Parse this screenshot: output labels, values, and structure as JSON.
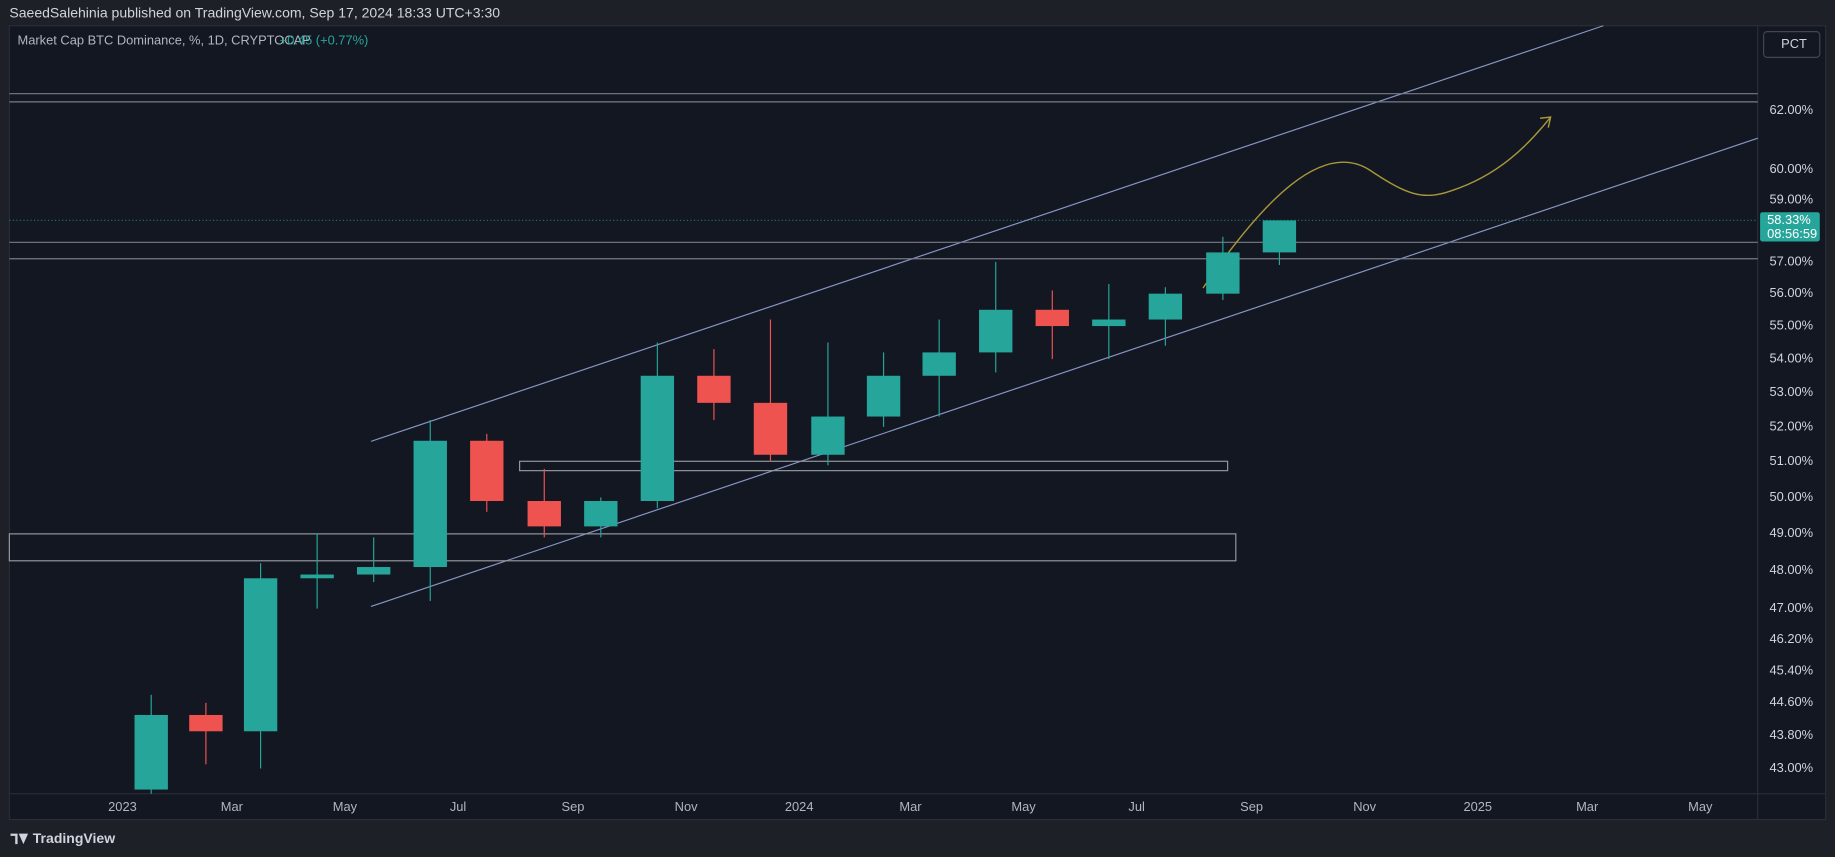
{
  "header": {
    "publisher_line": "SaeedSalehinia published on TradingView.com, Sep 17, 2024 18:33 UTC+3:30"
  },
  "chart_data": {
    "type": "candlestick",
    "title": "Market Cap BTC Dominance, %, 1D, CRYPTOCAP",
    "change_label": "+0.45 (+0.77%)",
    "scale_mode": "PCT",
    "log_scale": true,
    "grid": false,
    "up_color": "#26a69a",
    "down_color": "#ef5350",
    "x": [
      "2023-01",
      "2023-02",
      "2023-03",
      "2023-04",
      "2023-05",
      "2023-06",
      "2023-07",
      "2023-08",
      "2023-09",
      "2023-10",
      "2023-11",
      "2023-12",
      "2024-01",
      "2024-02",
      "2024-03",
      "2024-04",
      "2024-05",
      "2024-06",
      "2024-07",
      "2024-08",
      "2024-09"
    ],
    "open": [
      42.5,
      44.3,
      43.9,
      47.8,
      47.9,
      48.1,
      51.6,
      49.9,
      49.2,
      49.9,
      53.5,
      52.7,
      51.2,
      52.3,
      53.5,
      54.2,
      55.5,
      55.0,
      55.2,
      56.0,
      57.3
    ],
    "high": [
      44.8,
      44.6,
      48.2,
      49.0,
      48.9,
      52.2,
      51.8,
      50.8,
      50.0,
      54.5,
      54.3,
      55.2,
      54.5,
      54.2,
      55.2,
      57.0,
      56.1,
      56.3,
      56.2,
      57.8,
      58.33
    ],
    "low": [
      42.4,
      43.1,
      43.0,
      47.0,
      47.7,
      47.2,
      49.6,
      48.9,
      48.9,
      49.7,
      52.2,
      51.0,
      50.9,
      52.0,
      52.3,
      53.6,
      54.0,
      54.0,
      54.4,
      55.8,
      56.9
    ],
    "close": [
      44.3,
      43.9,
      47.8,
      47.9,
      48.1,
      51.6,
      49.9,
      49.2,
      49.9,
      53.5,
      52.7,
      51.2,
      52.3,
      53.5,
      54.2,
      55.5,
      55.0,
      55.2,
      56.0,
      57.3,
      58.33
    ],
    "xlim": [
      "2022-11",
      "2025-06"
    ],
    "xticks": [
      {
        "value": "2023-01",
        "label": "2023"
      },
      {
        "value": "2023-03",
        "label": "Mar"
      },
      {
        "value": "2023-05",
        "label": "May"
      },
      {
        "value": "2023-07",
        "label": "Jul"
      },
      {
        "value": "2023-09",
        "label": "Sep"
      },
      {
        "value": "2023-11",
        "label": "Nov"
      },
      {
        "value": "2024-01",
        "label": "2024"
      },
      {
        "value": "2024-03",
        "label": "Mar"
      },
      {
        "value": "2024-05",
        "label": "May"
      },
      {
        "value": "2024-07",
        "label": "Jul"
      },
      {
        "value": "2024-09",
        "label": "Sep"
      },
      {
        "value": "2024-11",
        "label": "Nov"
      },
      {
        "value": "2025-01",
        "label": "2025"
      },
      {
        "value": "2025-03",
        "label": "Mar"
      },
      {
        "value": "2025-05",
        "label": "May"
      }
    ],
    "ylim": [
      42.4,
      65
    ],
    "yticks": [
      {
        "value": 62,
        "label": "62.00%"
      },
      {
        "value": 60,
        "label": "60.00%"
      },
      {
        "value": 59,
        "label": "59.00%"
      },
      {
        "value": 57,
        "label": "57.00%"
      },
      {
        "value": 56,
        "label": "56.00%"
      },
      {
        "value": 55,
        "label": "55.00%"
      },
      {
        "value": 54,
        "label": "54.00%"
      },
      {
        "value": 53,
        "label": "53.00%"
      },
      {
        "value": 52,
        "label": "52.00%"
      },
      {
        "value": 51,
        "label": "51.00%"
      },
      {
        "value": 50,
        "label": "50.00%"
      },
      {
        "value": 49,
        "label": "49.00%"
      },
      {
        "value": 48,
        "label": "48.00%"
      },
      {
        "value": 47,
        "label": "47.00%"
      },
      {
        "value": 46.2,
        "label": "46.20%"
      },
      {
        "value": 45.4,
        "label": "45.40%"
      },
      {
        "value": 44.6,
        "label": "44.60%"
      },
      {
        "value": 43.8,
        "label": "43.80%"
      },
      {
        "value": 43,
        "label": "43.00%"
      }
    ],
    "last_price": {
      "value": 58.33,
      "label": "58.33%"
    },
    "countdown": "08:56:59"
  },
  "footer": {
    "brand": "TradingView"
  }
}
